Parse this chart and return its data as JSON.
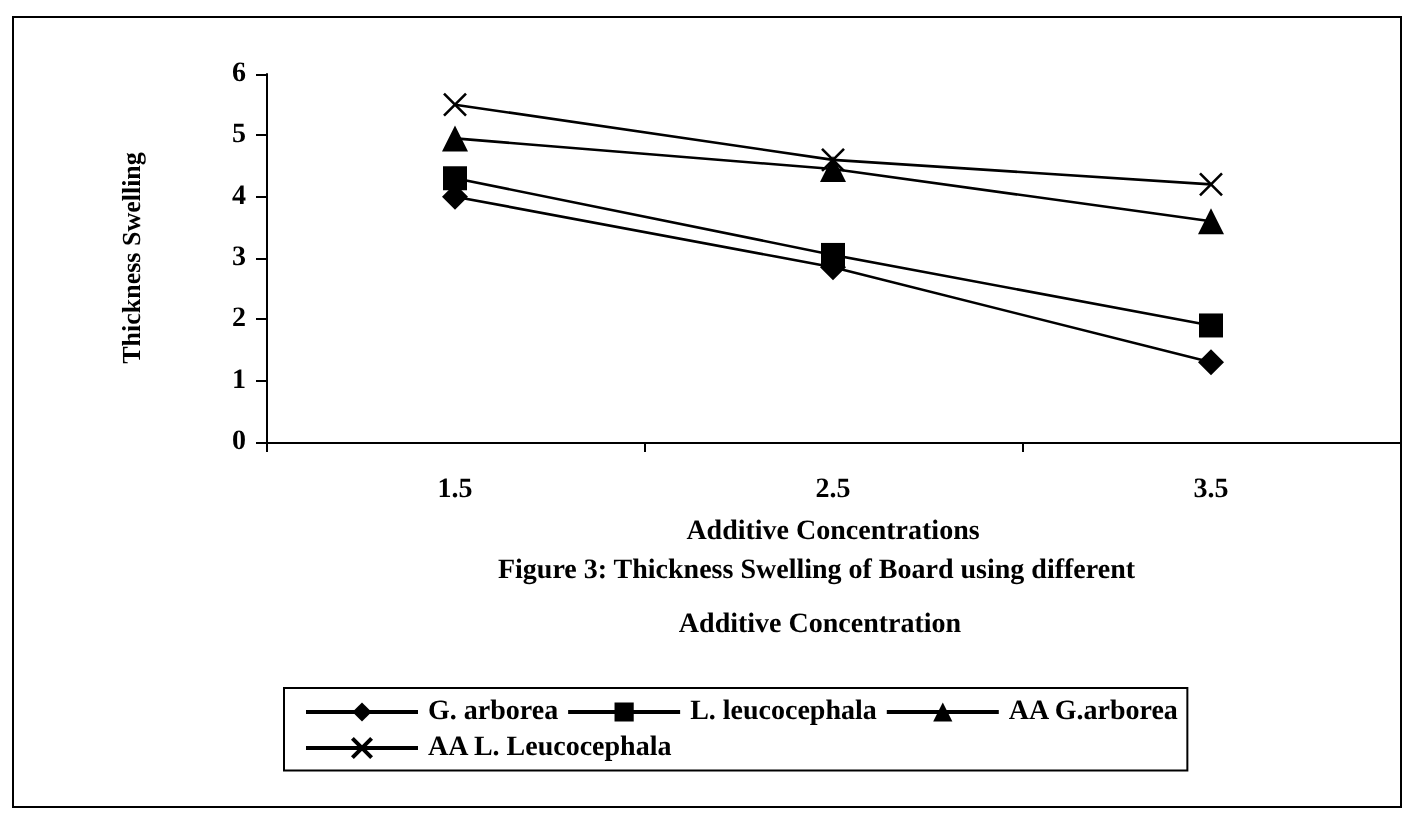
{
  "chart_data": {
    "type": "line",
    "title": "Figure 3: Thickness Swelling of Board using different Additive Concentration",
    "xlabel": "Additive Concentrations",
    "ylabel": "Thickness Swelling",
    "categories": [
      "1.5",
      "2.5",
      "3.5"
    ],
    "series": [
      {
        "name": "G. arborea",
        "color": "#000000",
        "marker": "diamond",
        "values": [
          4.0,
          2.85,
          1.3
        ]
      },
      {
        "name": "L. leucocephala",
        "color": "#000000",
        "marker": "square",
        "values": [
          4.3,
          3.05,
          1.9
        ]
      },
      {
        "name": "AA G.arborea",
        "color": "#000000",
        "marker": "triangle",
        "values": [
          4.95,
          4.45,
          3.6
        ]
      },
      {
        "name": "AA L. Leucocephala",
        "color": "#000000",
        "marker": "cross",
        "values": [
          5.5,
          4.6,
          4.2
        ]
      }
    ],
    "ylim": [
      0,
      6
    ],
    "yticks": [
      0,
      1,
      2,
      3,
      4,
      5,
      6
    ],
    "grid": false,
    "legend": "bottom"
  }
}
